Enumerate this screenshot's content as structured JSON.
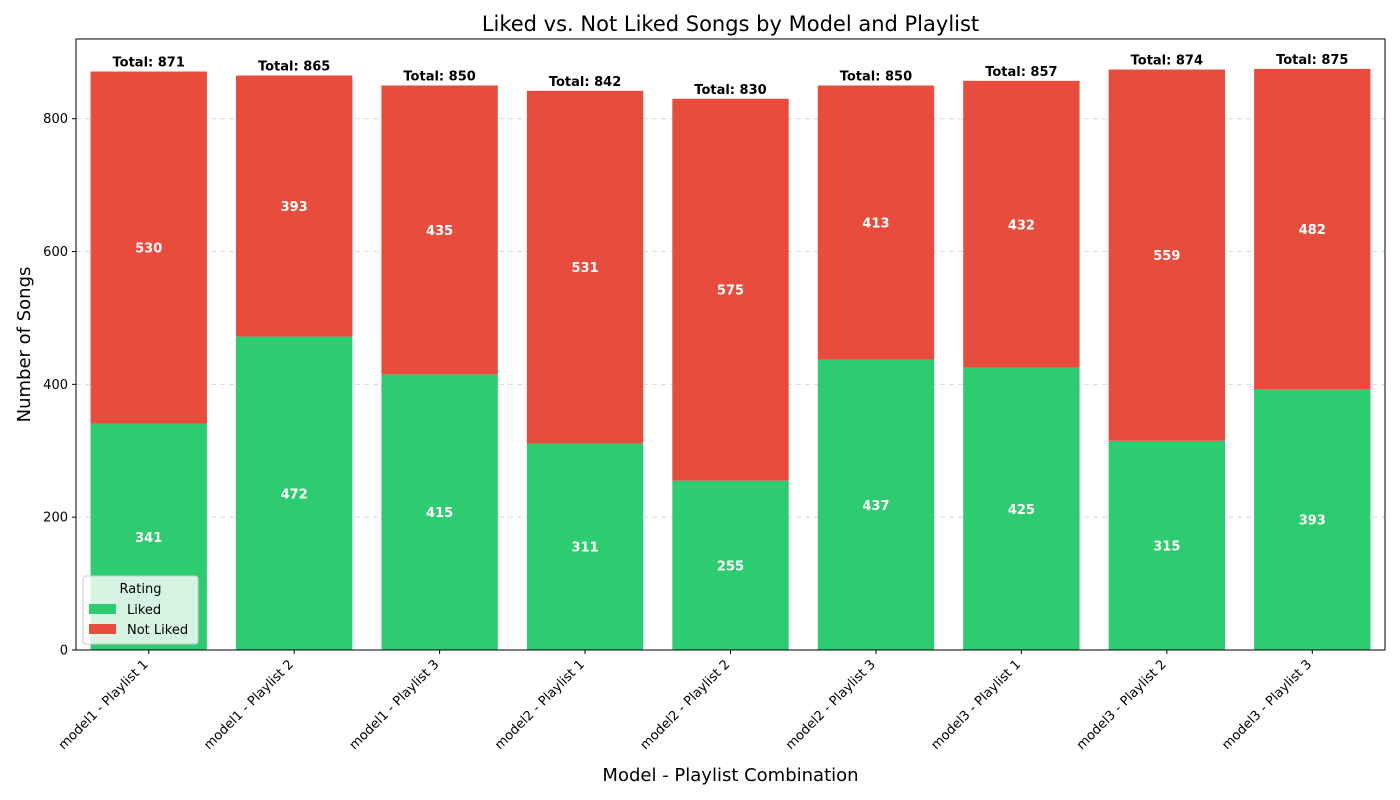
{
  "chart_data": {
    "type": "bar",
    "stacked": true,
    "title": "Liked vs. Not Liked Songs by Model and Playlist",
    "xlabel": "Model - Playlist Combination",
    "ylabel": "Number of Songs",
    "ylim": [
      0,
      920
    ],
    "yticks": [
      0,
      200,
      400,
      600,
      800
    ],
    "grid": "horizontal dashed",
    "categories": [
      "model1 - Playlist 1",
      "model1 - Playlist 2",
      "model1 - Playlist 3",
      "model2 - Playlist 1",
      "model2 - Playlist 2",
      "model2 - Playlist 3",
      "model3 - Playlist 1",
      "model3 - Playlist 2",
      "model3 - Playlist 3"
    ],
    "series": [
      {
        "name": "Liked",
        "color": "#2ecc71",
        "values": [
          341,
          472,
          415,
          311,
          255,
          437,
          425,
          315,
          393
        ]
      },
      {
        "name": "Not Liked",
        "color": "#e74c3c",
        "values": [
          530,
          393,
          435,
          531,
          575,
          413,
          432,
          559,
          482
        ]
      }
    ],
    "totals": [
      871,
      865,
      850,
      842,
      830,
      850,
      857,
      874,
      875
    ],
    "total_prefix": "Total: ",
    "legend": {
      "title": "Rating",
      "placement": "lower-left"
    }
  }
}
